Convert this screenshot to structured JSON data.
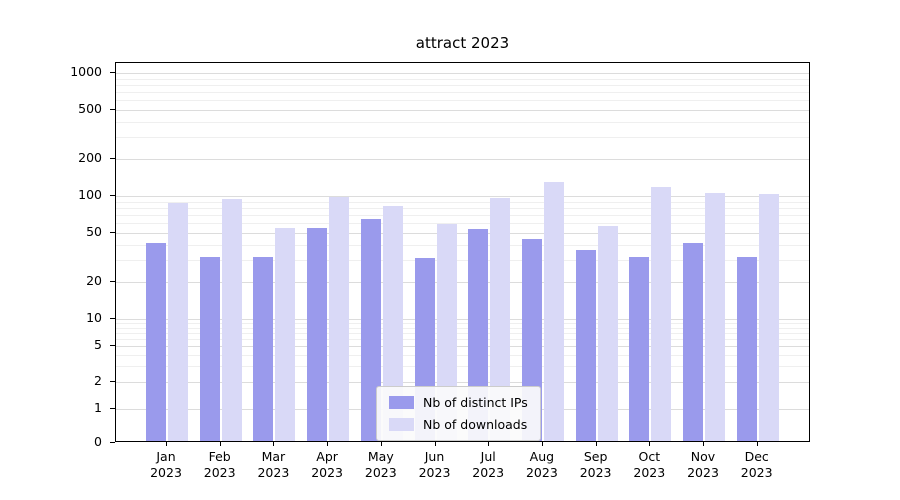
{
  "chart_data": {
    "type": "bar",
    "title": "attract 2023",
    "categories": [
      "Jan 2023",
      "Feb 2023",
      "Mar 2023",
      "Apr 2023",
      "May 2023",
      "Jun 2023",
      "Jul 2023",
      "Aug 2023",
      "Sep 2023",
      "Oct 2023",
      "Nov 2023",
      "Dec 2023"
    ],
    "series": [
      {
        "name": "Nb of distinct IPs",
        "color": "#9a9aec",
        "values": [
          40,
          31,
          31,
          53,
          63,
          30,
          52,
          43,
          35,
          31,
          40,
          31
        ]
      },
      {
        "name": "Nb of downloads",
        "color": "#d9d9f7",
        "values": [
          85,
          91,
          53,
          95,
          80,
          57,
          92,
          125,
          55,
          113,
          102,
          100
        ]
      }
    ],
    "yscale": "symlog",
    "yticks": [
      0,
      1,
      2,
      5,
      10,
      20,
      50,
      100,
      200,
      500,
      1000
    ],
    "ylim": [
      0,
      1200
    ],
    "xlabel": "",
    "ylabel": "",
    "grid": true,
    "legend_position": "lower center"
  }
}
